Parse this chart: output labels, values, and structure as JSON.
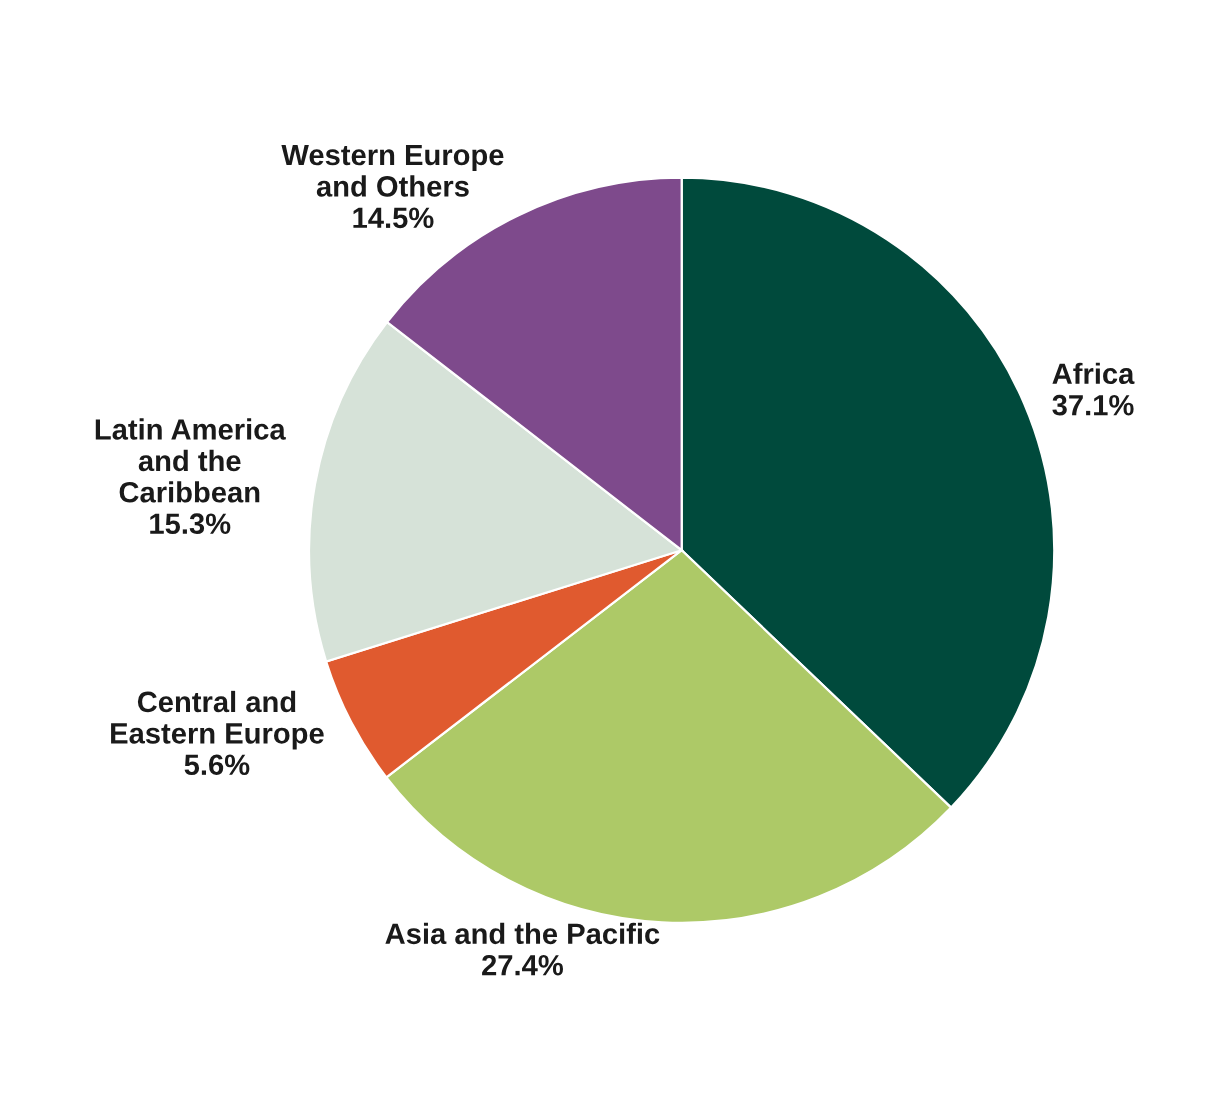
{
  "chart_data": {
    "type": "pie",
    "categories": [
      "Africa",
      "Asia and the Pacific",
      "Central and\nEastern Europe",
      "Latin America\nand the\nCaribbean",
      "Western Europe\nand Others"
    ],
    "values": [
      37.1,
      27.4,
      5.6,
      15.3,
      14.5
    ],
    "value_labels": [
      "37.1%",
      "27.4%",
      "5.6%",
      "15.3%",
      "14.5%"
    ],
    "colors": [
      "#004a3c",
      "#adc967",
      "#e05a2f",
      "#d6e2d8",
      "#7e4a8c"
    ],
    "legend": false
  }
}
